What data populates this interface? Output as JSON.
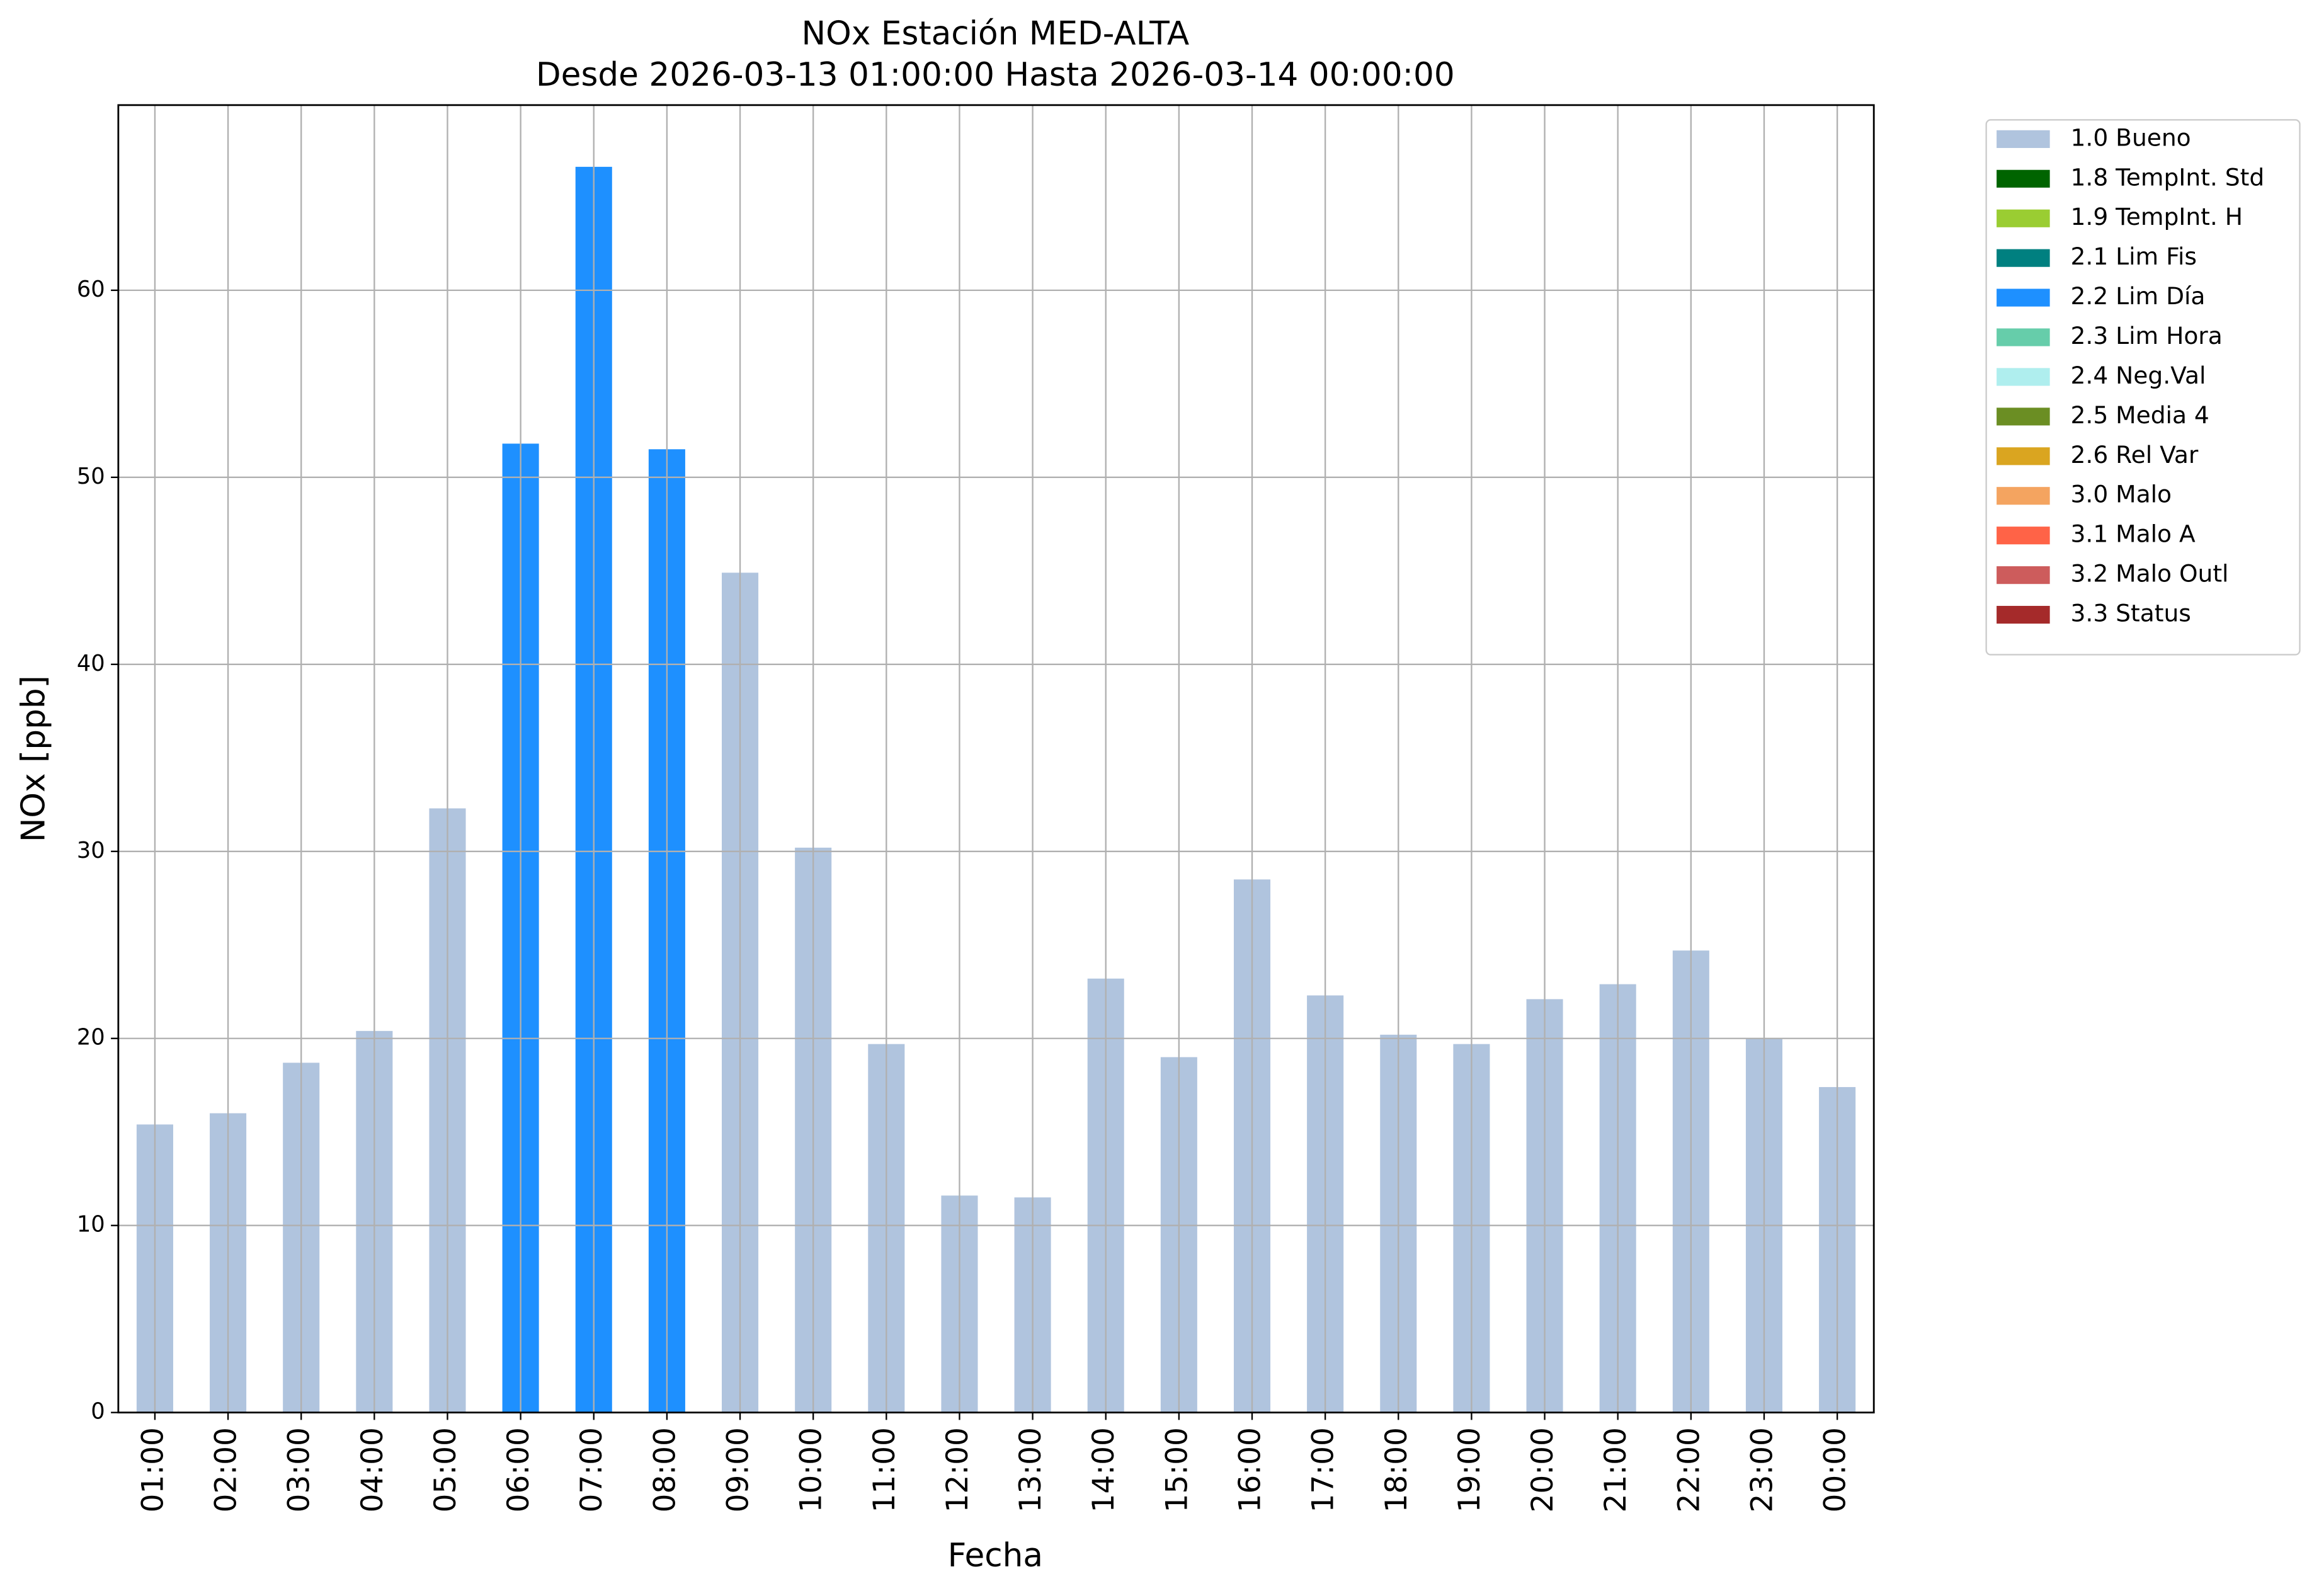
{
  "chart_data": {
    "type": "stacked_bar",
    "title": "NOx Estación MED-ALTA",
    "subtitle": "Desde 2026-03-13 01:00:00 Hasta 2026-03-14 00:00:00",
    "xlabel": "Fecha",
    "ylabel": "NOx [ppb]",
    "categories": [
      "01:00",
      "02:00",
      "03:00",
      "04:00",
      "05:00",
      "06:00",
      "07:00",
      "08:00",
      "09:00",
      "10:00",
      "11:00",
      "12:00",
      "13:00",
      "14:00",
      "15:00",
      "16:00",
      "17:00",
      "18:00",
      "19:00",
      "20:00",
      "21:00",
      "22:00",
      "23:00",
      "00:00"
    ],
    "ylim": [
      0,
      69.9
    ],
    "yticks": [
      0,
      10,
      20,
      30,
      40,
      50,
      60
    ],
    "grid": true,
    "legend": "outside-upper-right",
    "series": [
      {
        "name": "1.0 Bueno",
        "color": "#b0c4de",
        "values": [
          15.4,
          16.0,
          18.7,
          20.4,
          32.3,
          null,
          null,
          null,
          44.9,
          30.2,
          19.7,
          11.6,
          11.5,
          23.2,
          19.0,
          28.5,
          22.3,
          20.2,
          19.7,
          22.1,
          22.9,
          24.7,
          20.0,
          17.4
        ]
      },
      {
        "name": "1.8 TempInt. Std",
        "color": "#006400",
        "values": [
          null,
          null,
          null,
          null,
          null,
          null,
          null,
          null,
          null,
          null,
          null,
          null,
          null,
          null,
          null,
          null,
          null,
          null,
          null,
          null,
          null,
          null,
          null,
          null
        ]
      },
      {
        "name": "1.9 TempInt. H",
        "color": "#9acd32",
        "values": [
          null,
          null,
          null,
          null,
          null,
          null,
          null,
          null,
          null,
          null,
          null,
          null,
          null,
          null,
          null,
          null,
          null,
          null,
          null,
          null,
          null,
          null,
          null,
          null
        ]
      },
      {
        "name": "2.1 Lim Fis",
        "color": "#008080",
        "values": [
          null,
          null,
          null,
          null,
          null,
          null,
          null,
          null,
          null,
          null,
          null,
          null,
          null,
          null,
          null,
          null,
          null,
          null,
          null,
          null,
          null,
          null,
          null,
          null
        ]
      },
      {
        "name": "2.2 Lim Día",
        "color": "#1e90ff",
        "values": [
          null,
          null,
          null,
          null,
          null,
          51.8,
          66.6,
          51.5,
          null,
          null,
          null,
          null,
          null,
          null,
          null,
          null,
          null,
          null,
          null,
          null,
          null,
          null,
          null,
          null
        ]
      },
      {
        "name": "2.3 Lim Hora",
        "color": "#66cdaa",
        "values": [
          null,
          null,
          null,
          null,
          null,
          null,
          null,
          null,
          null,
          null,
          null,
          null,
          null,
          null,
          null,
          null,
          null,
          null,
          null,
          null,
          null,
          null,
          null,
          null
        ]
      },
      {
        "name": "2.4 Neg.Val",
        "color": "#afeeee",
        "values": [
          null,
          null,
          null,
          null,
          null,
          null,
          null,
          null,
          null,
          null,
          null,
          null,
          null,
          null,
          null,
          null,
          null,
          null,
          null,
          null,
          null,
          null,
          null,
          null
        ]
      },
      {
        "name": "2.5 Media 4",
        "color": "#6b8e23",
        "values": [
          null,
          null,
          null,
          null,
          null,
          null,
          null,
          null,
          null,
          null,
          null,
          null,
          null,
          null,
          null,
          null,
          null,
          null,
          null,
          null,
          null,
          null,
          null,
          null
        ]
      },
      {
        "name": "2.6 Rel Var",
        "color": "#daa520",
        "values": [
          null,
          null,
          null,
          null,
          null,
          null,
          null,
          null,
          null,
          null,
          null,
          null,
          null,
          null,
          null,
          null,
          null,
          null,
          null,
          null,
          null,
          null,
          null,
          null
        ]
      },
      {
        "name": "3.0 Malo",
        "color": "#f4a460",
        "values": [
          null,
          null,
          null,
          null,
          null,
          null,
          null,
          null,
          null,
          null,
          null,
          null,
          null,
          null,
          null,
          null,
          null,
          null,
          null,
          null,
          null,
          null,
          null,
          null
        ]
      },
      {
        "name": "3.1 Malo A",
        "color": "#ff6347",
        "values": [
          null,
          null,
          null,
          null,
          null,
          null,
          null,
          null,
          null,
          null,
          null,
          null,
          null,
          null,
          null,
          null,
          null,
          null,
          null,
          null,
          null,
          null,
          null,
          null
        ]
      },
      {
        "name": "3.2 Malo Outl",
        "color": "#cd5c5c",
        "values": [
          null,
          null,
          null,
          null,
          null,
          null,
          null,
          null,
          null,
          null,
          null,
          null,
          null,
          null,
          null,
          null,
          null,
          null,
          null,
          null,
          null,
          null,
          null,
          null
        ]
      },
      {
        "name": "3.3 Status",
        "color": "#a52a2a",
        "values": [
          null,
          null,
          null,
          null,
          null,
          null,
          null,
          null,
          null,
          null,
          null,
          null,
          null,
          null,
          null,
          null,
          null,
          null,
          null,
          null,
          null,
          null,
          null,
          null
        ]
      }
    ]
  }
}
